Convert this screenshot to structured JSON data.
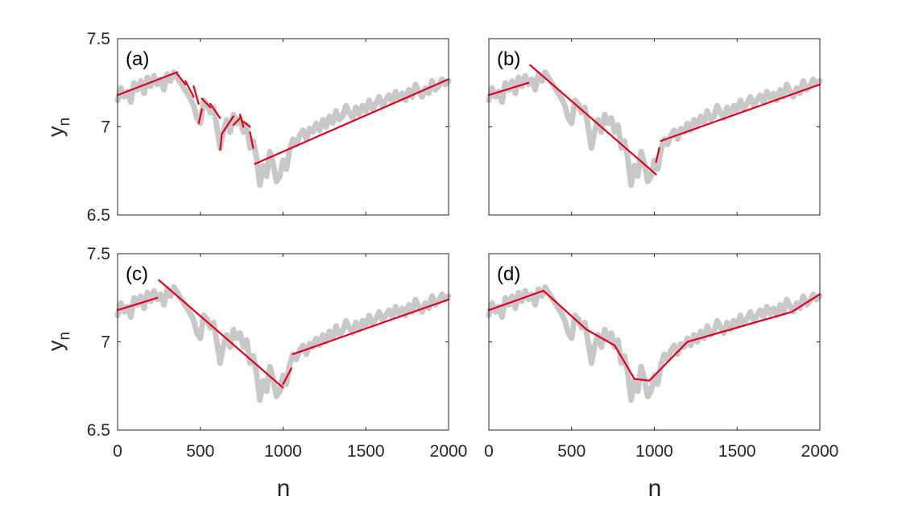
{
  "chart_data": {
    "type": "line",
    "x_label": "n",
    "y_label_base": "y",
    "y_label_sub": "n",
    "xlim": [
      0,
      2000
    ],
    "ylim": [
      6.5,
      7.5
    ],
    "x_ticks": [
      "0",
      "500",
      "1000",
      "1500",
      "2000"
    ],
    "x_tick_values": [
      0,
      500,
      1000,
      1500,
      2000
    ],
    "y_ticks": [
      "6.5",
      "7",
      "7.5"
    ],
    "y_tick_values": [
      6.5,
      7,
      7.5
    ],
    "raw_color": "#c8c8c8",
    "fit_color": "#e3001b",
    "raw_series": {
      "x": [
        0,
        20,
        40,
        60,
        80,
        100,
        120,
        140,
        160,
        180,
        200,
        220,
        240,
        260,
        280,
        300,
        320,
        340,
        360,
        380,
        400,
        420,
        440,
        460,
        480,
        500,
        520,
        540,
        560,
        580,
        600,
        620,
        640,
        660,
        680,
        700,
        720,
        740,
        760,
        780,
        800,
        820,
        840,
        860,
        880,
        900,
        920,
        940,
        960,
        980,
        1000,
        1020,
        1040,
        1060,
        1080,
        1100,
        1120,
        1140,
        1160,
        1180,
        1200,
        1220,
        1240,
        1260,
        1280,
        1300,
        1320,
        1340,
        1360,
        1380,
        1400,
        1420,
        1440,
        1460,
        1480,
        1500,
        1520,
        1540,
        1560,
        1580,
        1600,
        1620,
        1640,
        1660,
        1680,
        1700,
        1720,
        1740,
        1760,
        1780,
        1800,
        1820,
        1840,
        1860,
        1880,
        1900,
        1920,
        1940,
        1960,
        1980,
        2000
      ],
      "y": [
        7.15,
        7.22,
        7.17,
        7.2,
        7.14,
        7.25,
        7.21,
        7.26,
        7.19,
        7.28,
        7.23,
        7.29,
        7.24,
        7.27,
        7.21,
        7.3,
        7.26,
        7.31,
        7.28,
        7.25,
        7.22,
        7.19,
        7.16,
        7.12,
        7.05,
        7.02,
        7.15,
        7.13,
        7.08,
        7.11,
        7.0,
        6.88,
        6.98,
        7.04,
        6.97,
        7.07,
        7.02,
        7.05,
        6.97,
        7.01,
        6.88,
        6.92,
        6.82,
        6.67,
        6.78,
        6.72,
        6.86,
        6.79,
        6.69,
        6.72,
        6.81,
        6.76,
        6.87,
        6.93,
        6.9,
        6.95,
        6.98,
        6.93,
        6.99,
        6.97,
        7.02,
        6.98,
        7.04,
        7.0,
        7.06,
        7.02,
        7.09,
        7.04,
        7.06,
        7.12,
        7.08,
        7.05,
        7.11,
        7.07,
        7.12,
        7.09,
        7.15,
        7.1,
        7.13,
        7.17,
        7.12,
        7.15,
        7.18,
        7.14,
        7.2,
        7.16,
        7.19,
        7.15,
        7.21,
        7.17,
        7.24,
        7.2,
        7.17,
        7.22,
        7.19,
        7.26,
        7.21,
        7.23,
        7.27,
        7.24,
        7.26
      ]
    },
    "panels": [
      {
        "label": "(a)",
        "fit_segments": [
          [
            [
              0,
              7.18
            ],
            [
              360,
              7.31
            ]
          ],
          [
            [
              360,
              7.3
            ],
            [
              410,
              7.24
            ]
          ],
          [
            [
              410,
              7.26
            ],
            [
              460,
              7.17
            ]
          ],
          [
            [
              460,
              7.23
            ],
            [
              490,
              7.13
            ]
          ],
          [
            [
              490,
              7.02
            ],
            [
              510,
              7.1
            ]
          ],
          [
            [
              510,
              7.16
            ],
            [
              560,
              7.11
            ]
          ],
          [
            [
              560,
              7.13
            ],
            [
              620,
              7.05
            ]
          ],
          [
            [
              620,
              6.87
            ],
            [
              630,
              6.96
            ]
          ],
          [
            [
              630,
              6.96
            ],
            [
              700,
              7.06
            ]
          ],
          [
            [
              700,
              7.01
            ],
            [
              740,
              7.05
            ]
          ],
          [
            [
              740,
              7.07
            ],
            [
              760,
              7.0
            ]
          ],
          [
            [
              760,
              7.03
            ],
            [
              800,
              7.0
            ]
          ],
          [
            [
              800,
              6.97
            ],
            [
              820,
              6.88
            ]
          ],
          [
            [
              830,
              6.79
            ],
            [
              2000,
              7.27
            ]
          ]
        ]
      },
      {
        "label": "(b)",
        "fit_segments": [
          [
            [
              0,
              7.18
            ],
            [
              240,
              7.25
            ]
          ],
          [
            [
              250,
              7.35
            ],
            [
              1010,
              6.73
            ]
          ],
          [
            [
              1010,
              6.8
            ],
            [
              1030,
              6.88
            ]
          ],
          [
            [
              1040,
              6.92
            ],
            [
              2000,
              7.24
            ]
          ]
        ]
      },
      {
        "label": "(c)",
        "fit_segments": [
          [
            [
              0,
              7.18
            ],
            [
              240,
              7.25
            ]
          ],
          [
            [
              250,
              7.35
            ],
            [
              1000,
              6.74
            ]
          ],
          [
            [
              1000,
              6.76
            ],
            [
              1050,
              6.85
            ]
          ],
          [
            [
              1060,
              6.93
            ],
            [
              2000,
              7.24
            ]
          ]
        ]
      },
      {
        "label": "(d)",
        "fit_segments": [
          [
            [
              0,
              7.18
            ],
            [
              330,
              7.29
            ],
            [
              590,
              7.07
            ],
            [
              760,
              6.98
            ],
            [
              880,
              6.79
            ],
            [
              970,
              6.78
            ],
            [
              1200,
              7.0
            ],
            [
              1830,
              7.17
            ],
            [
              2000,
              7.27
            ]
          ]
        ]
      }
    ]
  }
}
